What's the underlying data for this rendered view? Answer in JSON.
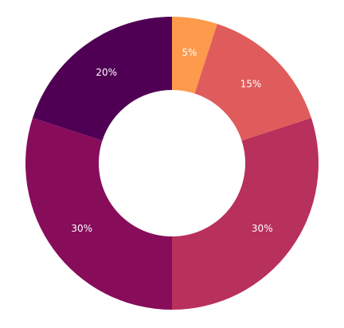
{
  "chart_data": {
    "type": "donut",
    "values": [
      5,
      15,
      30,
      30,
      20
    ],
    "value_labels": [
      "5%",
      "15%",
      "30%",
      "30%",
      "20%"
    ],
    "colors": [
      "#fd9a4b",
      "#e05c5c",
      "#b8305c",
      "#870d5b",
      "#500054"
    ]
  }
}
